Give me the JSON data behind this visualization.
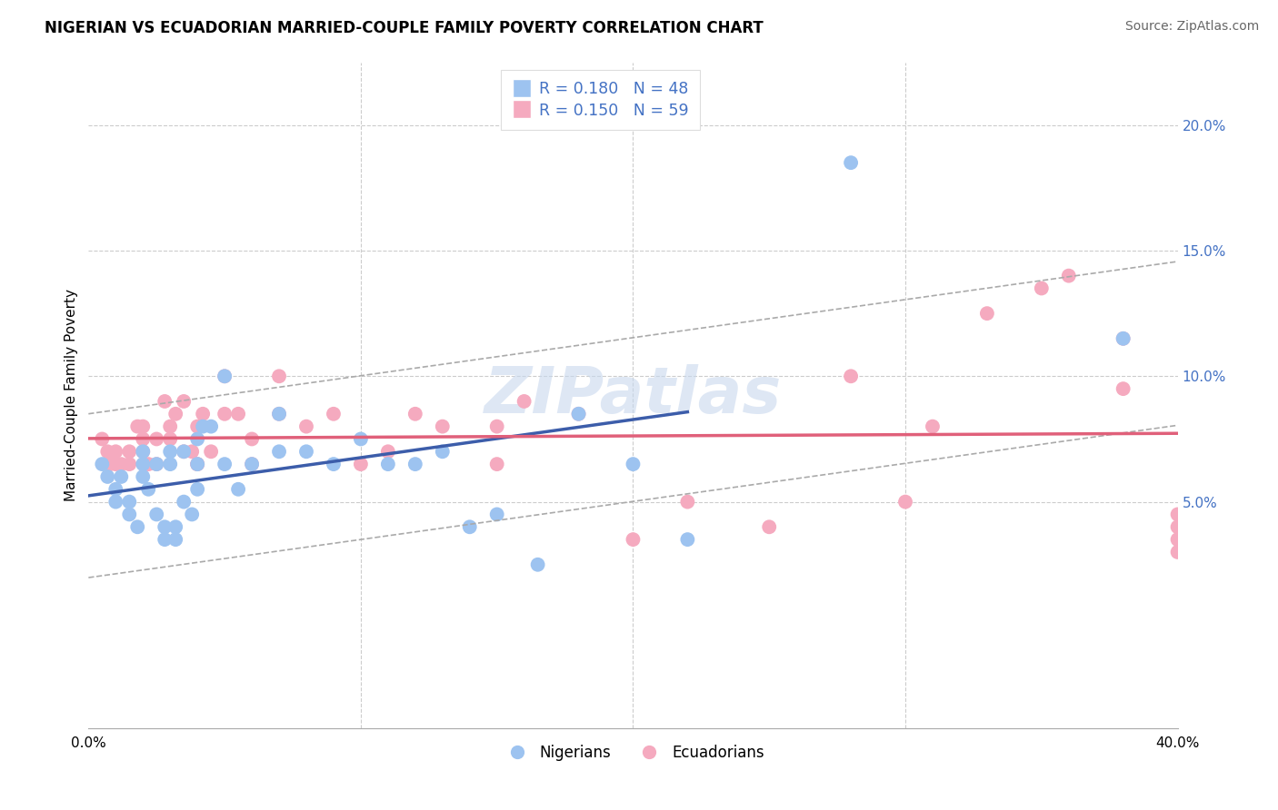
{
  "title": "NIGERIAN VS ECUADORIAN MARRIED-COUPLE FAMILY POVERTY CORRELATION CHART",
  "source": "Source: ZipAtlas.com",
  "ylabel": "Married-Couple Family Poverty",
  "xlim": [
    0.0,
    0.4
  ],
  "ylim": [
    -0.04,
    0.225
  ],
  "x_ticks": [
    0.0,
    0.1,
    0.2,
    0.3,
    0.4
  ],
  "x_tick_labels": [
    "0.0%",
    "",
    "",
    "",
    "40.0%"
  ],
  "y_ticks_right": [
    0.05,
    0.1,
    0.15,
    0.2
  ],
  "y_tick_labels_right": [
    "5.0%",
    "10.0%",
    "15.0%",
    "20.0%"
  ],
  "nigerian_color": "#9DC3F0",
  "ecuadorian_color": "#F5AABF",
  "nigerian_R": 0.18,
  "nigerian_N": 48,
  "ecuadorian_R": 0.15,
  "ecuadorian_N": 59,
  "nigerian_line_color": "#3C5DAA",
  "ecuadorian_line_color": "#E0607A",
  "ci_color": "#AAAAAA",
  "watermark": "ZIPatlas",
  "legend_label_nigerian": "Nigerians",
  "legend_label_ecuadorian": "Ecuadorians",
  "nigerian_x": [
    0.005,
    0.007,
    0.01,
    0.01,
    0.012,
    0.015,
    0.015,
    0.018,
    0.02,
    0.02,
    0.02,
    0.022,
    0.025,
    0.025,
    0.028,
    0.028,
    0.03,
    0.03,
    0.032,
    0.032,
    0.035,
    0.035,
    0.038,
    0.04,
    0.04,
    0.04,
    0.042,
    0.045,
    0.05,
    0.05,
    0.055,
    0.06,
    0.07,
    0.07,
    0.08,
    0.09,
    0.1,
    0.11,
    0.12,
    0.13,
    0.14,
    0.15,
    0.165,
    0.18,
    0.2,
    0.22,
    0.28,
    0.38
  ],
  "nigerian_y": [
    0.065,
    0.06,
    0.055,
    0.05,
    0.06,
    0.05,
    0.045,
    0.04,
    0.07,
    0.065,
    0.06,
    0.055,
    0.065,
    0.045,
    0.04,
    0.035,
    0.07,
    0.065,
    0.04,
    0.035,
    0.07,
    0.05,
    0.045,
    0.075,
    0.065,
    0.055,
    0.08,
    0.08,
    0.1,
    0.065,
    0.055,
    0.065,
    0.085,
    0.07,
    0.07,
    0.065,
    0.075,
    0.065,
    0.065,
    0.07,
    0.04,
    0.045,
    0.025,
    0.085,
    0.065,
    0.035,
    0.185,
    0.115
  ],
  "ecuadorian_x": [
    0.005,
    0.007,
    0.008,
    0.01,
    0.01,
    0.012,
    0.015,
    0.015,
    0.018,
    0.02,
    0.02,
    0.02,
    0.022,
    0.025,
    0.025,
    0.028,
    0.03,
    0.03,
    0.032,
    0.035,
    0.035,
    0.038,
    0.04,
    0.04,
    0.04,
    0.042,
    0.045,
    0.05,
    0.05,
    0.055,
    0.06,
    0.06,
    0.07,
    0.07,
    0.08,
    0.09,
    0.1,
    0.11,
    0.12,
    0.13,
    0.15,
    0.15,
    0.16,
    0.18,
    0.2,
    0.22,
    0.25,
    0.28,
    0.3,
    0.31,
    0.33,
    0.35,
    0.36,
    0.38,
    0.38,
    0.4,
    0.4,
    0.4,
    0.4
  ],
  "ecuadorian_y": [
    0.075,
    0.07,
    0.065,
    0.065,
    0.07,
    0.065,
    0.07,
    0.065,
    0.08,
    0.07,
    0.075,
    0.08,
    0.065,
    0.075,
    0.065,
    0.09,
    0.075,
    0.08,
    0.085,
    0.07,
    0.09,
    0.07,
    0.065,
    0.08,
    0.065,
    0.085,
    0.07,
    0.085,
    0.1,
    0.085,
    0.075,
    0.065,
    0.1,
    0.085,
    0.08,
    0.085,
    0.065,
    0.07,
    0.085,
    0.08,
    0.08,
    0.065,
    0.09,
    0.085,
    0.035,
    0.05,
    0.04,
    0.1,
    0.05,
    0.08,
    0.125,
    0.135,
    0.14,
    0.115,
    0.095,
    0.04,
    0.035,
    0.045,
    0.03
  ]
}
